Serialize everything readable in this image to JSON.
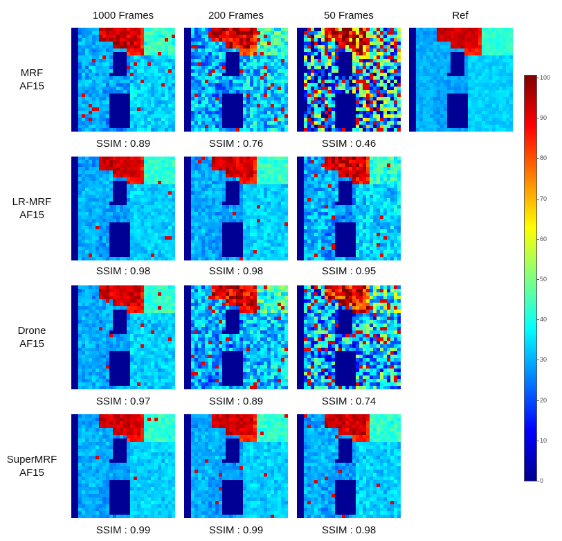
{
  "columns": [
    "1000 Frames",
    "200 Frames",
    "50 Frames",
    "Ref"
  ],
  "rows": [
    {
      "label_line1": "MRF",
      "label_line2": "AF15",
      "ssim": [
        "SSIM : 0.89",
        "SSIM : 0.76",
        "SSIM : 0.46"
      ]
    },
    {
      "label_line1": "LR-MRF",
      "label_line2": "AF15",
      "ssim": [
        "SSIM : 0.98",
        "SSIM : 0.98",
        "SSIM : 0.95"
      ]
    },
    {
      "label_line1": "Drone",
      "label_line2": "AF15",
      "ssim": [
        "SSIM : 0.97",
        "SSIM : 0.89",
        "SSIM : 0.74"
      ]
    },
    {
      "label_line1": "SuperMRF",
      "label_line2": "AF15",
      "ssim": [
        "SSIM : 0.99",
        "SSIM : 0.99",
        "SSIM : 0.98"
      ]
    }
  ],
  "colorbar": {
    "ticks": [
      "100",
      "90",
      "80",
      "70",
      "60",
      "50",
      "40",
      "30",
      "20",
      "10",
      "0"
    ],
    "colormap": [
      "#00008f",
      "#0000ff",
      "#0080ff",
      "#00ffff",
      "#80ff80",
      "#ffff00",
      "#ff8000",
      "#ff0000",
      "#800000"
    ]
  },
  "colors": {
    "background": "#00008f",
    "tissue": "#2f8fe8",
    "fat": "#b01010",
    "muscle": "#40c0d0"
  }
}
